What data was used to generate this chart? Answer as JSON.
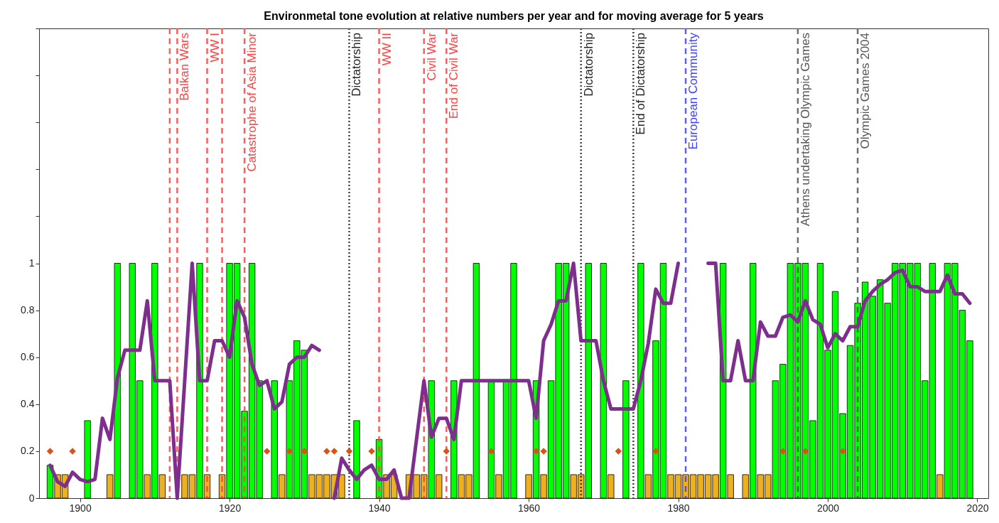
{
  "chart_data": {
    "type": "bar",
    "title": "Environmetal tone evolution at relative numbers per year and for moving average for 5 years",
    "xlim": [
      1895,
      2021
    ],
    "xticks": [
      1900,
      1920,
      1940,
      1960,
      1980,
      2000,
      2020
    ],
    "ylim": [
      0,
      2
    ],
    "yticks": [
      0,
      0.2,
      0.4,
      0.6,
      0.8,
      1,
      {
        "value": 1.2,
        "label": null
      },
      {
        "value": 1.4,
        "label": null
      },
      {
        "value": 1.6,
        "label": null
      },
      {
        "value": 1.8,
        "label": null
      },
      {
        "value": 2,
        "label": null
      }
    ],
    "series": [
      {
        "color": "#00ff00",
        "x": [
          1896,
          1901,
          1905,
          1907,
          1908,
          1910,
          1916,
          1920,
          1921,
          1922,
          1923,
          1924,
          1926,
          1928,
          1929,
          1930,
          1937,
          1940,
          1947,
          1950,
          1953,
          1955,
          1957,
          1958,
          1961,
          1963,
          1964,
          1965,
          1968,
          1970,
          1973,
          1975,
          1977,
          1978,
          1986,
          1990,
          1993,
          1994,
          1995,
          1996,
          1997,
          1998,
          1999,
          2000,
          2001,
          2002,
          2003,
          2004,
          2005,
          2006,
          2007,
          2008,
          2009,
          2010,
          2011,
          2012,
          2013,
          2014,
          2016,
          2017,
          2018,
          2019
        ],
        "values": [
          0.14,
          0.33,
          1,
          1,
          0.5,
          1,
          1,
          1,
          1,
          0.37,
          1,
          0.5,
          0.5,
          0.5,
          0.67,
          0.63,
          0.33,
          0.25,
          0.5,
          0.5,
          1,
          0.5,
          0.5,
          1,
          0.5,
          0.5,
          1,
          1,
          1,
          1,
          0.5,
          1,
          0.67,
          1,
          1,
          1,
          0.5,
          0.57,
          1,
          1,
          1,
          0.33,
          1,
          0.63,
          0.88,
          0.36,
          0.65,
          0.83,
          0.92,
          0.86,
          0.93,
          0.83,
          1,
          1,
          1,
          1,
          0.5,
          1,
          1,
          1,
          0.8,
          0.67
        ]
      },
      {
        "color": "#edb120",
        "x": [
          1897,
          1898,
          1904,
          1909,
          1911,
          1914,
          1915,
          1917,
          1919,
          1927,
          1931,
          1932,
          1933,
          1934,
          1935,
          1941,
          1942,
          1944,
          1945,
          1946,
          1948,
          1951,
          1952,
          1956,
          1960,
          1962,
          1966,
          1967,
          1971,
          1976,
          1979,
          1980,
          1981,
          1982,
          1983,
          1984,
          1985,
          1987,
          1989,
          1991,
          1992,
          2015
        ],
        "values": [
          0.1,
          0.1,
          0.1,
          0.1,
          0.1,
          0.1,
          0.1,
          0.1,
          0.1,
          0.1,
          0.1,
          0.1,
          0.1,
          0.1,
          0.1,
          0.1,
          0.1,
          0.1,
          0.1,
          0.1,
          0.1,
          0.1,
          0.1,
          0.1,
          0.1,
          0.1,
          0.1,
          0.1,
          0.1,
          0.1,
          0.1,
          0.1,
          0.1,
          0.1,
          0.1,
          0.1,
          0.1,
          0.1,
          0.1,
          0.1,
          0.1,
          0.1
        ]
      },
      {
        "type": "scatter",
        "marker": "diamond",
        "color": "#d95319",
        "x": [
          1896,
          1899,
          1925,
          1928,
          1930,
          1933,
          1934,
          1936,
          1939,
          1949,
          1955,
          1961,
          1962,
          1972,
          1977,
          1994,
          1997,
          2002
        ],
        "values": [
          0.2,
          0.2,
          0.2,
          0.2,
          0.2,
          0.2,
          0.2,
          0.2,
          0.2,
          0.2,
          0.2,
          0.2,
          0.2,
          0.2,
          0.2,
          0.2,
          0.2,
          0.2
        ]
      },
      {
        "type": "line",
        "color": "#7e2f8e",
        "x": [
          1896,
          1897,
          1898,
          1899,
          1900,
          1901,
          1902,
          1903,
          1904,
          1905,
          1906,
          1907,
          1908,
          1909,
          1910,
          1911,
          1912,
          1913,
          1914,
          1915,
          1916,
          1917,
          1918,
          1919,
          1920,
          1921,
          1922,
          1923,
          1924,
          1925,
          1926,
          1927,
          1928,
          1929,
          1930,
          1931,
          1932,
          1933,
          1934,
          1935,
          1936,
          1937,
          1938,
          1939,
          1940,
          1941,
          1942,
          1943,
          1944,
          1945,
          1946,
          1947,
          1948,
          1949,
          1950,
          1951,
          1952,
          1953,
          1954,
          1955,
          1956,
          1957,
          1958,
          1959,
          1960,
          1961,
          1962,
          1963,
          1964,
          1965,
          1966,
          1967,
          1968,
          1969,
          1970,
          1971,
          1972,
          1973,
          1974,
          1975,
          1976,
          1977,
          1978,
          1979,
          1980,
          1981,
          1982,
          1983,
          1984,
          1985,
          1986,
          1987,
          1988,
          1989,
          1990,
          1991,
          1992,
          1993,
          1994,
          1995,
          1996,
          1997,
          1998,
          1999,
          2000,
          2001,
          2002,
          2003,
          2004,
          2005,
          2006,
          2007,
          2008,
          2009,
          2010,
          2011,
          2012,
          2013,
          2014,
          2015,
          2016,
          2017,
          2018,
          2019
        ],
        "values": [
          0.14,
          0.07,
          0.05,
          0.11,
          0.08,
          0.07,
          0.08,
          0.34,
          0.25,
          0.51,
          0.63,
          0.63,
          0.63,
          0.84,
          0.5,
          0.5,
          0.5,
          0,
          0.5,
          1,
          0.5,
          0.5,
          0.67,
          0.67,
          0.6,
          0.84,
          0.77,
          0.57,
          0.48,
          0.5,
          0.38,
          0.41,
          0.57,
          0.6,
          0.6,
          0.65,
          0.63,
          null,
          0,
          0.17,
          0.12,
          0.08,
          0.12,
          0.14,
          0.08,
          0.08,
          0.12,
          0,
          0,
          0.25,
          0.5,
          0.26,
          0.34,
          0.34,
          0.25,
          0.5,
          0.5,
          0.5,
          0.5,
          0.5,
          0.5,
          0.5,
          0.5,
          0.5,
          0.5,
          0.34,
          0.67,
          0.74,
          0.84,
          0.84,
          1,
          0.67,
          0.67,
          0.67,
          0.5,
          0.38,
          0.38,
          0.38,
          0.38,
          0.5,
          0.66,
          0.89,
          0.83,
          0.83,
          1,
          null,
          null,
          null,
          1,
          1,
          0.5,
          0.5,
          0.67,
          0.5,
          0.5,
          0.75,
          0.69,
          0.69,
          0.77,
          0.78,
          0.75,
          0.84,
          0.76,
          0.74,
          0.64,
          0.7,
          0.67,
          0.73,
          0.73,
          0.84,
          0.88,
          0.91,
          0.93,
          0.96,
          0.97,
          0.9,
          0.9,
          0.88,
          0.88,
          0.88,
          0.95,
          0.87,
          0.87,
          0.83
        ]
      }
    ],
    "ref_lines": [
      {
        "axis": "x",
        "value": 1912,
        "color": "#ff4040",
        "line_style": "dashed"
      },
      {
        "axis": "x",
        "value": 1913,
        "label": "Balkan Wars",
        "color": "#ff4040",
        "line_style": "dashed"
      },
      {
        "axis": "x",
        "value": 1917,
        "label": "WW I",
        "color": "#ff4040",
        "line_style": "dashed"
      },
      {
        "axis": "x",
        "value": 1919,
        "color": "#ff4040",
        "line_style": "dashed"
      },
      {
        "axis": "x",
        "value": 1922,
        "label": "Catastrophe of Asia Minor",
        "color": "#ff4040",
        "line_style": "dashed"
      },
      {
        "axis": "x",
        "value": 1936,
        "label": "Dictatorship",
        "color": "#222222",
        "line_style": "dotted"
      },
      {
        "axis": "x",
        "value": 1940,
        "label": "WW II",
        "color": "#ff4040",
        "line_style": "dashed"
      },
      {
        "axis": "x",
        "value": 1946,
        "label": "Civil War",
        "color": "#ff4040",
        "line_style": "dashed"
      },
      {
        "axis": "x",
        "value": 1949,
        "label": "End of Civil War",
        "color": "#ff4040",
        "line_style": "dashed"
      },
      {
        "axis": "x",
        "value": 1967,
        "label": "Dictatorship",
        "color": "#222222",
        "line_style": "dotted"
      },
      {
        "axis": "x",
        "value": 1974,
        "label": "End of Dictatorship",
        "color": "#222222",
        "line_style": "dotted"
      },
      {
        "axis": "x",
        "value": 1981,
        "label": "European Community",
        "color": "#4040ff",
        "line_style": "dashed"
      },
      {
        "axis": "x",
        "value": 1996,
        "label": "Athens undertaking Olympic Games",
        "color": "#555555",
        "line_style": "dashed"
      },
      {
        "axis": "x",
        "value": 2004,
        "label": "Olympic Games 2004",
        "color": "#555555",
        "line_style": "dashed"
      }
    ]
  }
}
